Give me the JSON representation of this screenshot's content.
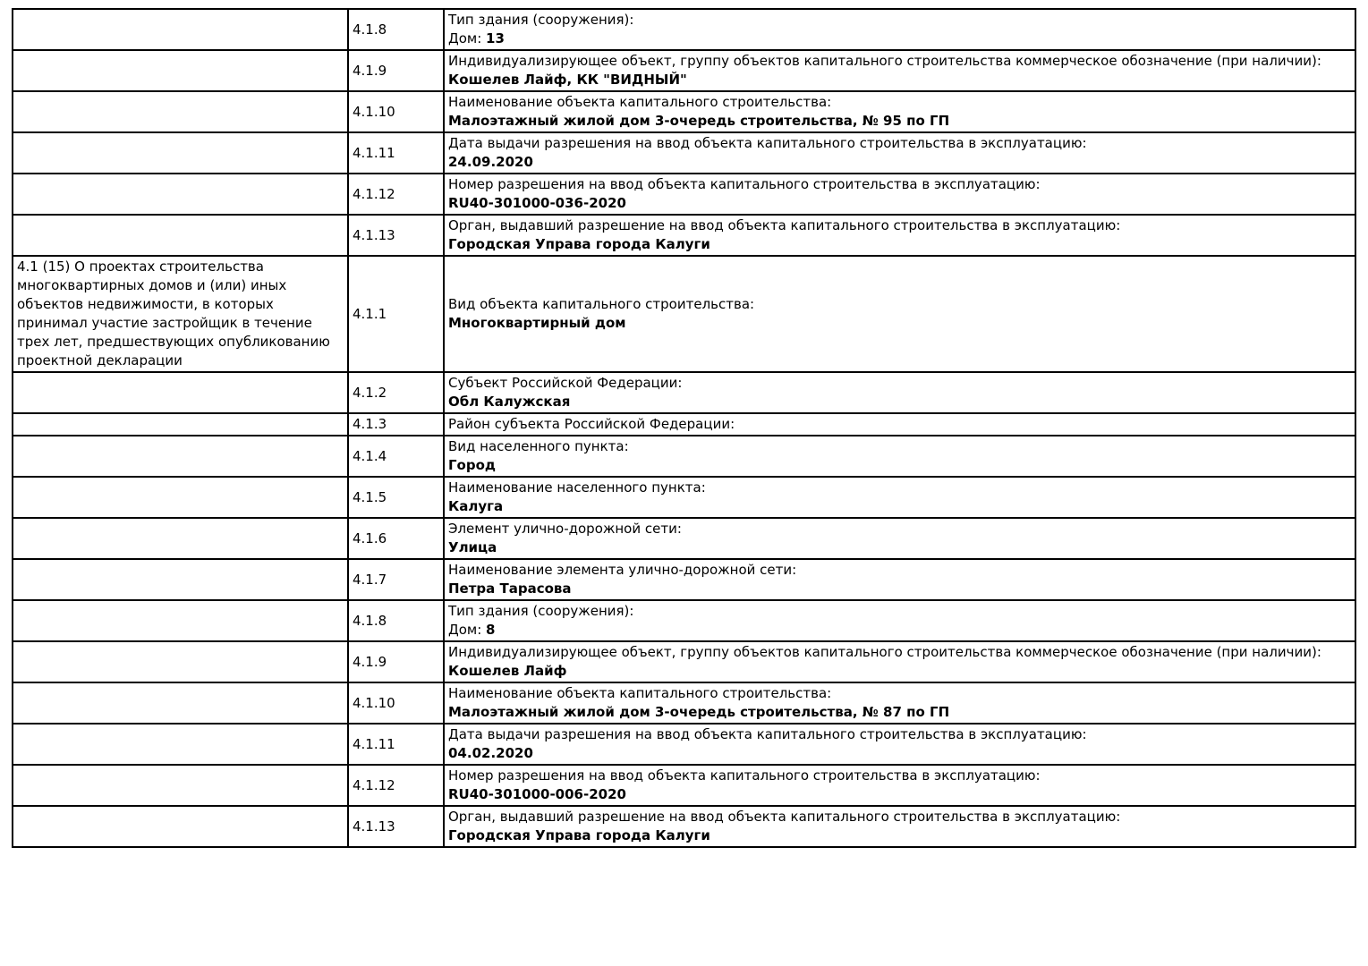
{
  "page": {
    "background_color": "#ffffff",
    "text_color": "#000000",
    "border_color": "#000000"
  },
  "table": {
    "section_title": "4.1 (15) О проектах строительства многоквартирных домов и (или) иных объектов недвижимости, в которых принимал участие застройщик в течение трех лет, предшествующих опубликованию проектной декларации",
    "rows": [
      {
        "section": "",
        "code": "4.1.8",
        "label": "Тип здания (сооружения):",
        "value_prefix": "Дом: ",
        "value": "13"
      },
      {
        "section": "",
        "code": "4.1.9",
        "label": "Индивидуализирующее объект, группу объектов капитального строительства коммерческое обозначение (при наличии):",
        "value": "Кошелев Лайф, КК \"ВИДНЫЙ\""
      },
      {
        "section": "",
        "code": "4.1.10",
        "label": "Наименование объекта капитального строительства:",
        "value": "Малоэтажный жилой дом 3-очередь строительства, № 95 по ГП"
      },
      {
        "section": "",
        "code": "4.1.11",
        "label": "Дата выдачи разрешения на ввод объекта капитального строительства в эксплуатацию:",
        "value": "24.09.2020"
      },
      {
        "section": "",
        "code": "4.1.12",
        "label": "Номер разрешения на ввод объекта капитального строительства в эксплуатацию:",
        "value": "RU40-301000-036-2020"
      },
      {
        "section": "",
        "code": "4.1.13",
        "label": "Орган, выдавший разрешение на ввод объекта капитального строительства в эксплуатацию:",
        "value": "Городская Управа города Калуги"
      },
      {
        "section": "4.1 (15) О проектах строительства многоквартирных домов и (или) иных объектов недвижимости, в которых принимал участие застройщик в течение трех лет, предшествующих опубликованию проектной декларации",
        "code": "4.1.1",
        "label": "Вид объекта капитального строительства:",
        "value": "Многоквартирный дом"
      },
      {
        "section": "",
        "code": "4.1.2",
        "label": "Субъект Российской Федерации:",
        "value": "Обл Калужская"
      },
      {
        "section": "",
        "code": "4.1.3",
        "label": "Район субъекта Российской Федерации:",
        "value": ""
      },
      {
        "section": "",
        "code": "4.1.4",
        "label": "Вид населенного пункта:",
        "value": "Город"
      },
      {
        "section": "",
        "code": "4.1.5",
        "label": "Наименование населенного пункта:",
        "value": "Калуга"
      },
      {
        "section": "",
        "code": "4.1.6",
        "label": "Элемент улично-дорожной сети:",
        "value": "Улица"
      },
      {
        "section": "",
        "code": "4.1.7",
        "label": "Наименование элемента улично-дорожной сети:",
        "value": "Петра Тарасова"
      },
      {
        "section": "",
        "code": "4.1.8",
        "label": "Тип здания (сооружения):",
        "value_prefix": "Дом: ",
        "value": "8"
      },
      {
        "section": "",
        "code": "4.1.9",
        "label": "Индивидуализирующее объект, группу объектов капитального строительства коммерческое обозначение (при наличии):",
        "value": "Кошелев Лайф"
      },
      {
        "section": "",
        "code": "4.1.10",
        "label": "Наименование объекта капитального строительства:",
        "value": "Малоэтажный жилой дом 3-очередь строительства, № 87 по ГП"
      },
      {
        "section": "",
        "code": "4.1.11",
        "label": "Дата выдачи разрешения на ввод объекта капитального строительства в эксплуатацию:",
        "value": "04.02.2020"
      },
      {
        "section": "",
        "code": "4.1.12",
        "label": "Номер разрешения на ввод объекта капитального строительства в эксплуатацию:",
        "value": "RU40-301000-006-2020"
      },
      {
        "section": "",
        "code": "4.1.13",
        "label": "Орган, выдавший разрешение на ввод объекта капитального строительства в эксплуатацию:",
        "value": "Городская Управа города Калуги"
      }
    ]
  }
}
